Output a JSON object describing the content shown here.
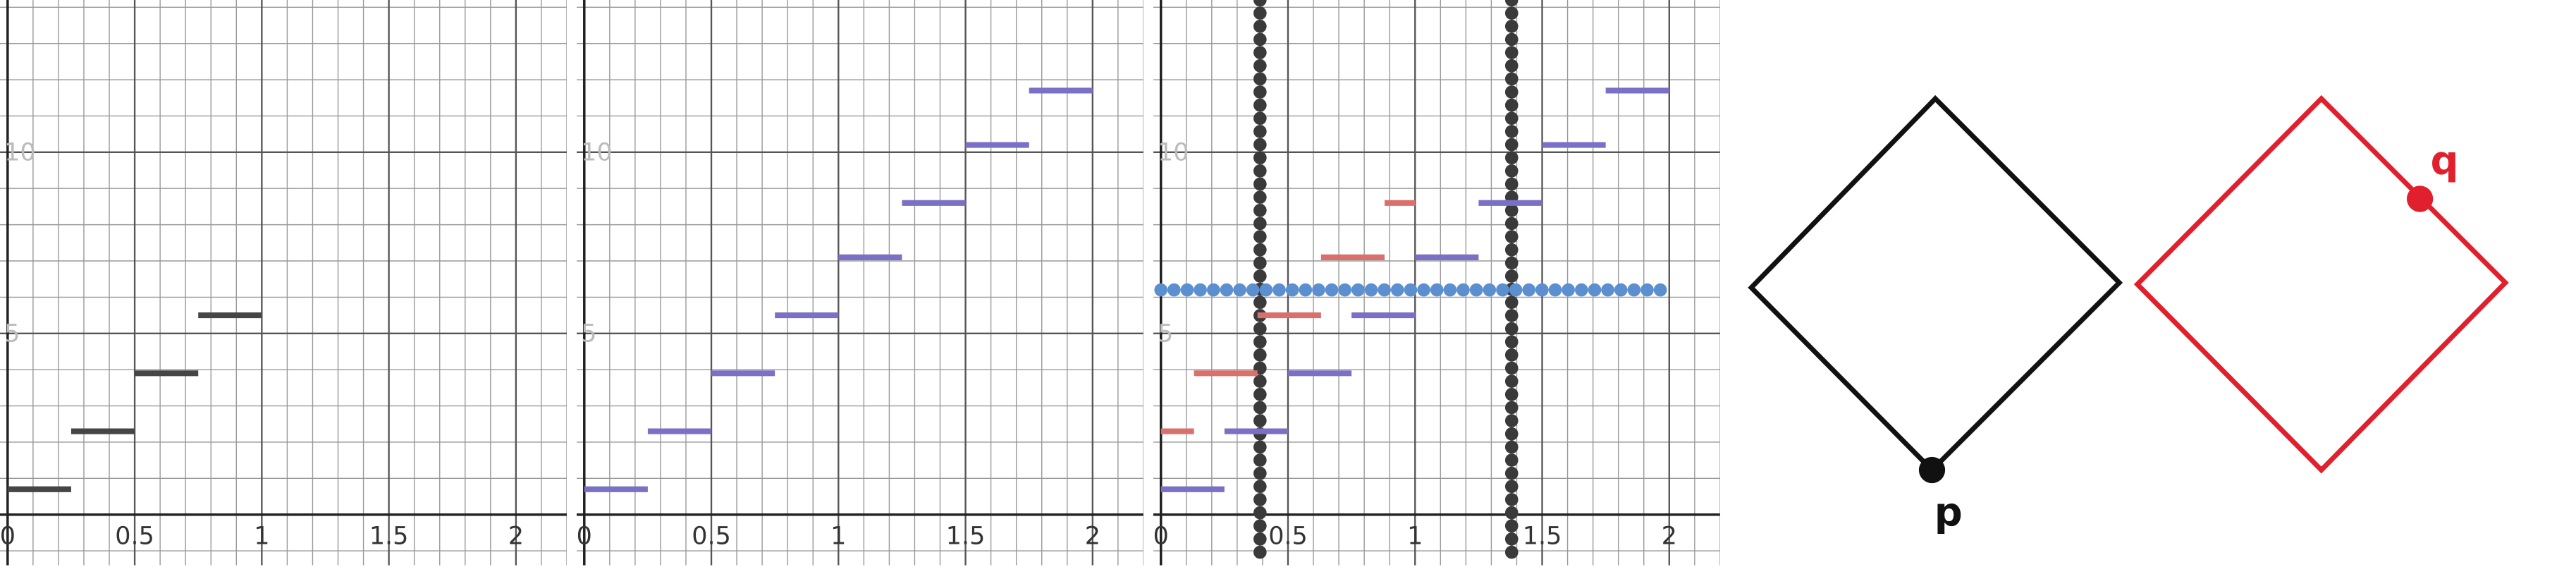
{
  "chart_data": [
    {
      "type": "step",
      "xlim": [
        -0.03,
        2.2
      ],
      "ylim": [
        -1.4,
        14.2
      ],
      "xticks": [
        0,
        0.5,
        1,
        1.5,
        2
      ],
      "yticks": [
        5,
        10
      ],
      "grid": true,
      "series": [
        {
          "color": "#454545",
          "x_start": [
            0,
            0.25,
            0.5,
            0.75
          ],
          "x_end": [
            0.25,
            0.5,
            0.75,
            1
          ],
          "values": [
            0.7,
            2.3,
            3.9,
            5.5
          ]
        }
      ]
    },
    {
      "type": "step",
      "xlim": [
        -0.03,
        2.2
      ],
      "ylim": [
        -1.4,
        14.2
      ],
      "xticks": [
        0,
        0.5,
        1,
        1.5,
        2
      ],
      "yticks": [
        5,
        10
      ],
      "grid": true,
      "series": [
        {
          "color": "#7a70c6",
          "x_start": [
            0,
            0.25,
            0.5,
            0.75,
            1,
            1.25,
            1.5,
            1.75
          ],
          "x_end": [
            0.25,
            0.5,
            0.75,
            1,
            1.25,
            1.5,
            1.75,
            2
          ],
          "values": [
            0.7,
            2.3,
            3.9,
            5.5,
            7.1,
            8.6,
            10.2,
            11.7
          ]
        }
      ]
    },
    {
      "type": "step",
      "xlim": [
        -0.03,
        2.2
      ],
      "ylim": [
        -1.4,
        14.2
      ],
      "xticks": [
        0,
        0.5,
        1,
        1.5,
        2
      ],
      "yticks": [
        5,
        10
      ],
      "grid": true,
      "series": [
        {
          "color": "#7a70c6",
          "x_start": [
            0,
            0.25,
            0.5,
            0.75,
            1,
            1.25,
            1.5,
            1.75
          ],
          "x_end": [
            0.25,
            0.5,
            0.75,
            1,
            1.25,
            1.5,
            1.75,
            2
          ],
          "values": [
            0.7,
            2.3,
            3.9,
            5.5,
            7.1,
            8.6,
            10.2,
            11.7
          ]
        },
        {
          "color": "#d9706e",
          "x_start": [
            0,
            0.13,
            0.38,
            0.63,
            0.88
          ],
          "x_end": [
            0.13,
            0.38,
            0.63,
            0.88,
            1
          ],
          "values": [
            2.3,
            3.9,
            5.5,
            7.1,
            8.6
          ]
        },
        {
          "color": "#5b8fd0",
          "style": "dotted",
          "x_start": [
            0
          ],
          "x_end": [
            2
          ],
          "values": [
            6.2
          ]
        }
      ],
      "vlines": [
        0.39,
        1.38
      ],
      "vline_color": "#3a3a3a"
    }
  ],
  "diagram": {
    "labels": [
      "p",
      "q"
    ]
  }
}
